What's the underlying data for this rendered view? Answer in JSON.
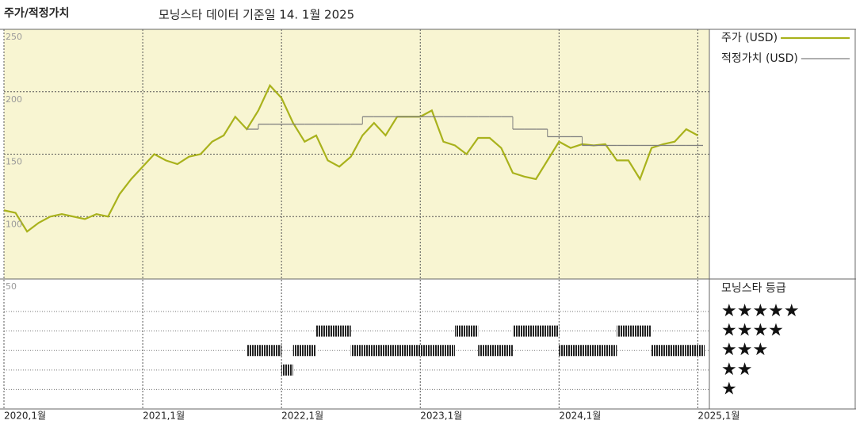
{
  "title": "주가/적정가치",
  "subtitle": "모닝스타 데이터 기준일 14. 1월 2025",
  "chart_data": {
    "type": "line",
    "x": [
      "2020-01",
      "2020-02",
      "2020-03",
      "2020-04",
      "2020-05",
      "2020-06",
      "2020-07",
      "2020-08",
      "2020-09",
      "2020-10",
      "2020-11",
      "2020-12",
      "2021-01",
      "2021-02",
      "2021-03",
      "2021-04",
      "2021-05",
      "2021-06",
      "2021-07",
      "2021-08",
      "2021-09",
      "2021-10",
      "2021-11",
      "2021-12",
      "2022-01",
      "2022-02",
      "2022-03",
      "2022-04",
      "2022-05",
      "2022-06",
      "2022-07",
      "2022-08",
      "2022-09",
      "2022-10",
      "2022-11",
      "2022-12",
      "2023-01",
      "2023-02",
      "2023-03",
      "2023-04",
      "2023-05",
      "2023-06",
      "2023-07",
      "2023-08",
      "2023-09",
      "2023-10",
      "2023-11",
      "2023-12",
      "2024-01",
      "2024-02",
      "2024-03",
      "2024-04",
      "2024-05",
      "2024-06",
      "2024-07",
      "2024-08",
      "2024-09",
      "2024-10",
      "2024-11",
      "2024-12",
      "2025-01"
    ],
    "series": [
      {
        "name": "주가 (USD)",
        "color": "#a9b21c",
        "values": [
          105,
          103,
          88,
          95,
          100,
          102,
          100,
          98,
          102,
          100,
          118,
          130,
          140,
          150,
          145,
          142,
          148,
          150,
          160,
          165,
          180,
          170,
          185,
          205,
          195,
          175,
          160,
          165,
          145,
          140,
          148,
          165,
          175,
          165,
          180,
          180,
          180,
          185,
          160,
          157,
          150,
          163,
          163,
          155,
          135,
          132,
          130,
          145,
          160,
          155,
          158,
          157,
          158,
          145,
          145,
          130,
          155,
          158,
          160,
          170,
          165
        ]
      },
      {
        "name": "적정가치 (USD)",
        "color": "#7f7f7f",
        "values": [
          null,
          null,
          null,
          null,
          null,
          null,
          null,
          null,
          null,
          null,
          null,
          null,
          null,
          null,
          null,
          null,
          null,
          null,
          null,
          null,
          null,
          170,
          174,
          174,
          174,
          174,
          174,
          174,
          174,
          174,
          174,
          180,
          180,
          180,
          180,
          180,
          180,
          180,
          180,
          180,
          180,
          180,
          180,
          180,
          170,
          170,
          170,
          164,
          164,
          164,
          157,
          157,
          157,
          157,
          157,
          157,
          157,
          157,
          157,
          157,
          157
        ]
      },
      {
        "name": "모닝스타 등급",
        "color": "#222222",
        "axis": "y2",
        "values": [
          null,
          null,
          null,
          null,
          null,
          null,
          null,
          null,
          null,
          null,
          null,
          null,
          null,
          null,
          null,
          null,
          null,
          null,
          null,
          null,
          null,
          3,
          3,
          3,
          2,
          3,
          3,
          4,
          4,
          4,
          3,
          3,
          3,
          3,
          3,
          3,
          3,
          3,
          3,
          4,
          4,
          3,
          3,
          3,
          4,
          4,
          4,
          4,
          3,
          3,
          3,
          3,
          3,
          4,
          4,
          4,
          3,
          3,
          3,
          3,
          3
        ]
      }
    ],
    "xlim": [
      "2020-01",
      "2025-02"
    ],
    "xticks": [
      {
        "value": "2020-01",
        "label": "2020,1월"
      },
      {
        "value": "2021-01",
        "label": "2021,1월"
      },
      {
        "value": "2022-01",
        "label": "2022,1월"
      },
      {
        "value": "2023-01",
        "label": "2023,1월"
      },
      {
        "value": "2024-01",
        "label": "2024,1월"
      },
      {
        "value": "2025-01",
        "label": "2025,1월"
      }
    ],
    "ylim": [
      50,
      250
    ],
    "yticks": [
      50,
      100,
      150,
      200,
      250
    ],
    "y2lim": [
      0,
      6.67
    ],
    "y2ticks": [
      {
        "value": 5,
        "label": "★★★★★"
      },
      {
        "value": 4,
        "label": "★★★★"
      },
      {
        "value": 3,
        "label": "★★★"
      },
      {
        "value": 2,
        "label": "★★"
      },
      {
        "value": 1,
        "label": "★"
      }
    ],
    "grid": true,
    "legend": "right"
  }
}
